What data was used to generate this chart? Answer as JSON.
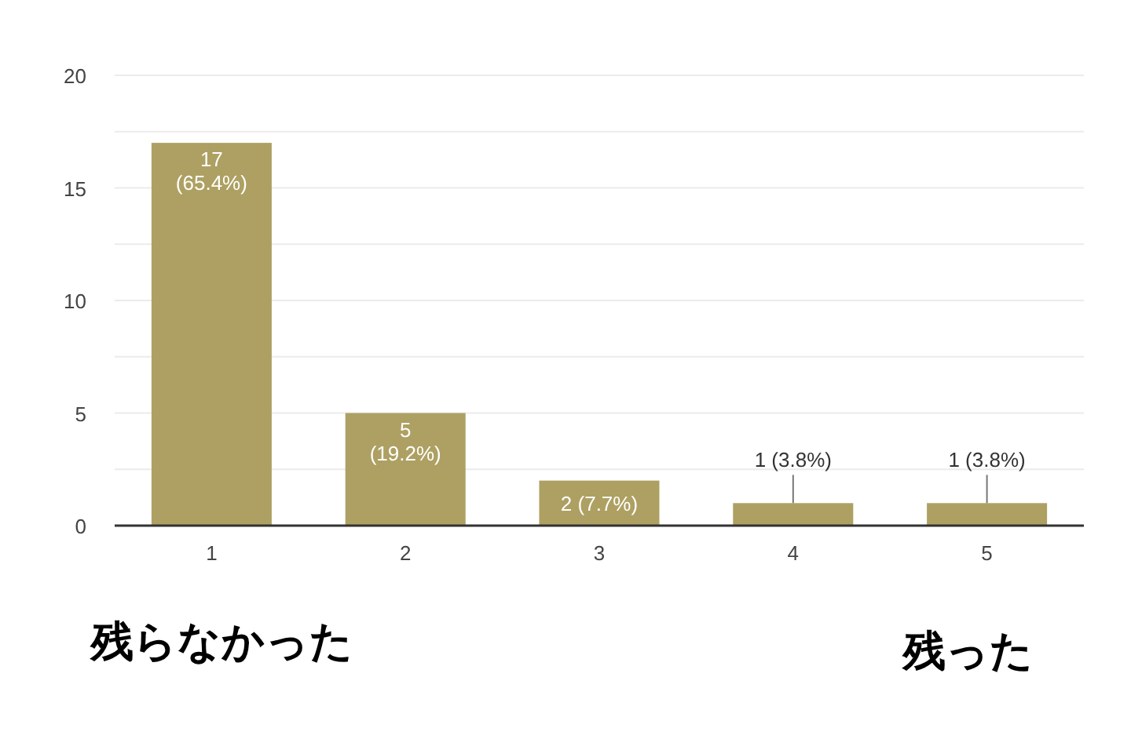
{
  "chart_data": {
    "type": "bar",
    "categories": [
      "1",
      "2",
      "3",
      "4",
      "5"
    ],
    "values": [
      17,
      5,
      2,
      1,
      1
    ],
    "color": "#ada062",
    "value_labels": [
      "17 (65.4%)",
      "5 (19.2%)",
      "2 (7.7%)",
      "1 (3.8%)",
      "1 (3.8%)"
    ],
    "ylim": [
      0,
      20
    ],
    "yticks": [
      0,
      {
        "value": 2.5,
        "label": null
      },
      5,
      {
        "value": 7.5,
        "label": null
      },
      10,
      {
        "value": 12.5,
        "label": null
      },
      15,
      {
        "value": 17.5,
        "label": null
      },
      20
    ],
    "grid": "y",
    "annotations": [
      "残らなかった",
      "残った"
    ]
  }
}
